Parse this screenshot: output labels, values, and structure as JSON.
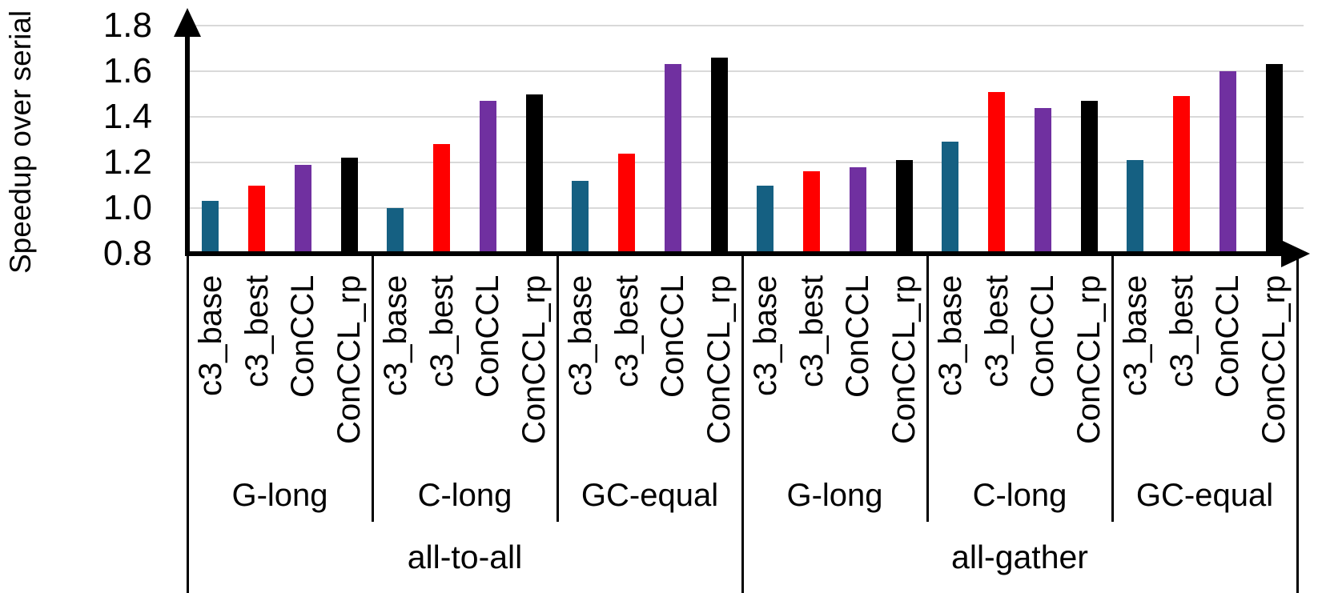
{
  "chart_data": {
    "type": "bar",
    "title": "",
    "xlabel": "",
    "ylabel": "Speedup over serial",
    "ylim": [
      0.8,
      1.8
    ],
    "yticks": [
      0.8,
      1.0,
      1.2,
      1.4,
      1.6,
      1.8
    ],
    "ytick_labels": [
      "0.8",
      "1.0",
      "1.2",
      "1.4",
      "1.6",
      "1.8"
    ],
    "grid": true,
    "legend_position": "none",
    "series_labels": [
      "c3_base",
      "c3_best",
      "ConCCL",
      "ConCCL_rp"
    ],
    "series_colors": {
      "c3_base": "#156082",
      "c3_best": "#FF0000",
      "ConCCL": "#7030A0",
      "ConCCL_rp": "#000000"
    },
    "sections": [
      {
        "label": "all-to-all",
        "groups": [
          {
            "label": "G-long",
            "values": [
              1.03,
              1.1,
              1.19,
              1.22
            ]
          },
          {
            "label": "C-long",
            "values": [
              1.0,
              1.28,
              1.47,
              1.5
            ]
          },
          {
            "label": "GC-equal",
            "values": [
              1.12,
              1.24,
              1.63,
              1.66
            ]
          }
        ]
      },
      {
        "label": "all-gather",
        "groups": [
          {
            "label": "G-long",
            "values": [
              1.1,
              1.16,
              1.18,
              1.21
            ]
          },
          {
            "label": "C-long",
            "values": [
              1.29,
              1.51,
              1.44,
              1.47
            ]
          },
          {
            "label": "GC-equal",
            "values": [
              1.21,
              1.49,
              1.6,
              1.63
            ]
          }
        ]
      }
    ]
  },
  "colors": {
    "gridline": "#D9D9D9",
    "axis": "#000000",
    "text": "#000000",
    "background": "#FFFFFF"
  }
}
